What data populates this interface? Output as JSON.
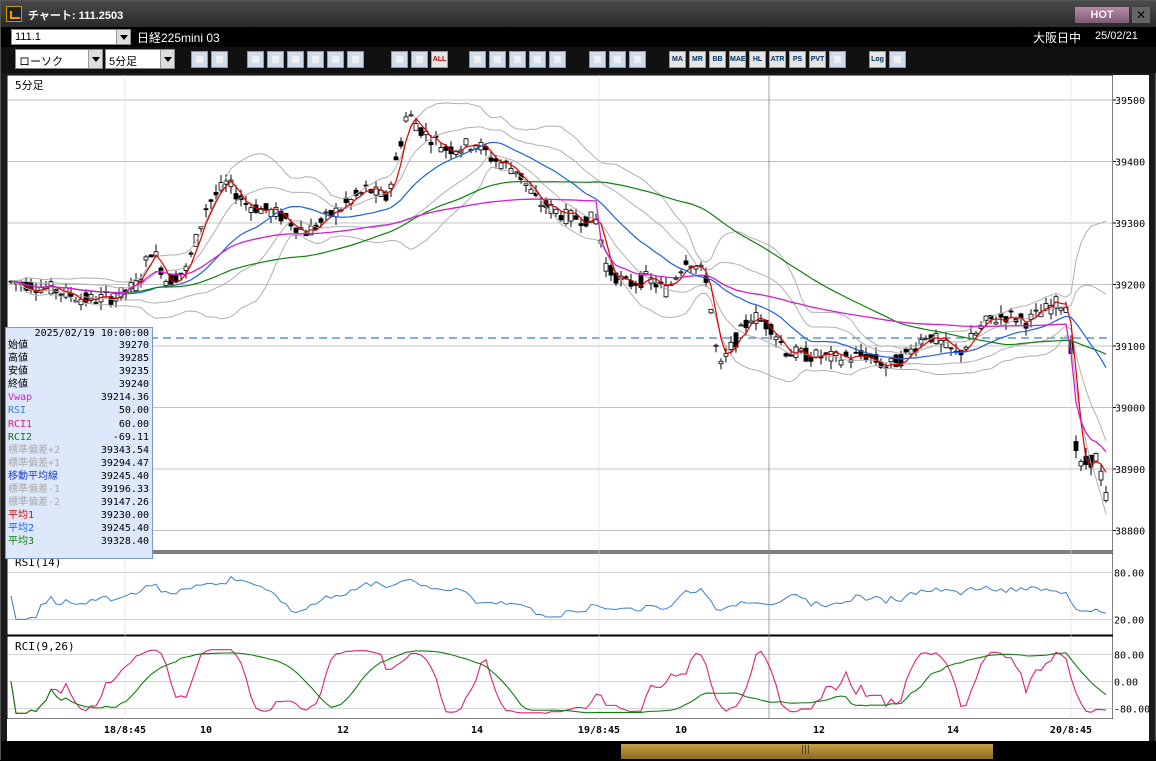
{
  "window": {
    "title": "チャート: 111.2503",
    "hot_label": "HOT",
    "close_label": "✕"
  },
  "symbol": {
    "code": "111.1",
    "name": "日経225mini 03",
    "session": "大阪日中",
    "date": "25/02/21"
  },
  "toolbar": {
    "chart_type": "ローソク",
    "period": "5分足",
    "buttons": [
      "zoom",
      "window",
      "draw-line",
      "fib",
      "cursor",
      "redo",
      "print",
      "trash",
      "candle-a",
      "candle-b",
      "ALL",
      "clock",
      "search",
      "bar-chart",
      "cross",
      "blank",
      "gear",
      "wrench",
      "palette",
      "MA",
      "MR",
      "BB",
      "MAE",
      "HL",
      "ATR",
      "PS",
      "PVT",
      "box",
      "Log",
      "exit"
    ]
  },
  "chart": {
    "period_label": "5分足",
    "price_ticks": [
      "39500",
      "39400",
      "39300",
      "39200",
      "39100",
      "39000",
      "38900",
      "38800"
    ],
    "rsi_label": "RSI(14)",
    "rsi_ticks": [
      "80.00",
      "20.00"
    ],
    "rci_label": "RCI(9,26)",
    "rci_ticks": [
      "80.00",
      "0.00",
      "-80.00"
    ],
    "time_labels": [
      "18/8:45",
      "10",
      "12",
      "14",
      "19/8:45",
      "10",
      "12",
      "14",
      "20/8:45"
    ],
    "colors": {
      "candle_up": "#ffffff",
      "candle_down": "#000000",
      "avg1": "#e00000",
      "avg2": "#2060e0",
      "avg3": "#108010",
      "vwap": "#d020d0",
      "bands": "#b0b0b0",
      "rsi": "#3a7fd0",
      "rci1": "#e0207a",
      "rci2": "#108010",
      "hline": "#3a7fd0"
    }
  },
  "chart_data": {
    "type": "candlestick",
    "price_range": [
      38750,
      39540
    ],
    "rsi_range": [
      0,
      100
    ],
    "rci_range": [
      -100,
      100
    ]
  },
  "info": {
    "datetime": "2025/02/19 10:00:00",
    "rows": [
      {
        "label": "始値",
        "value": "39270",
        "color": "#000"
      },
      {
        "label": "高値",
        "value": "39285",
        "color": "#000"
      },
      {
        "label": "安値",
        "value": "39235",
        "color": "#000"
      },
      {
        "label": "終値",
        "value": "39240",
        "color": "#000"
      },
      {
        "label": "Vwap",
        "value": "39214.36",
        "color": "#d020d0"
      },
      {
        "label": "RSI",
        "value": "50.00",
        "color": "#3a7fd0"
      },
      {
        "label": "RCI1",
        "value": "60.00",
        "color": "#e0207a"
      },
      {
        "label": "RCI2",
        "value": "-69.11",
        "color": "#108010"
      },
      {
        "label": "標準偏差+2",
        "value": "39343.54",
        "color": "#aaaaaa"
      },
      {
        "label": "標準偏差+1",
        "value": "39294.47",
        "color": "#aaaaaa"
      },
      {
        "label": "移動平均線",
        "value": "39245.40",
        "color": "#2040c0"
      },
      {
        "label": "標準偏差-1",
        "value": "39196.33",
        "color": "#aaaaaa"
      },
      {
        "label": "標準偏差-2",
        "value": "39147.26",
        "color": "#aaaaaa"
      },
      {
        "label": "平均1",
        "value": "39230.00",
        "color": "#e00000"
      },
      {
        "label": "平均2",
        "value": "39245.40",
        "color": "#2060e0"
      },
      {
        "label": "平均3",
        "value": "39328.40",
        "color": "#108010"
      }
    ]
  }
}
